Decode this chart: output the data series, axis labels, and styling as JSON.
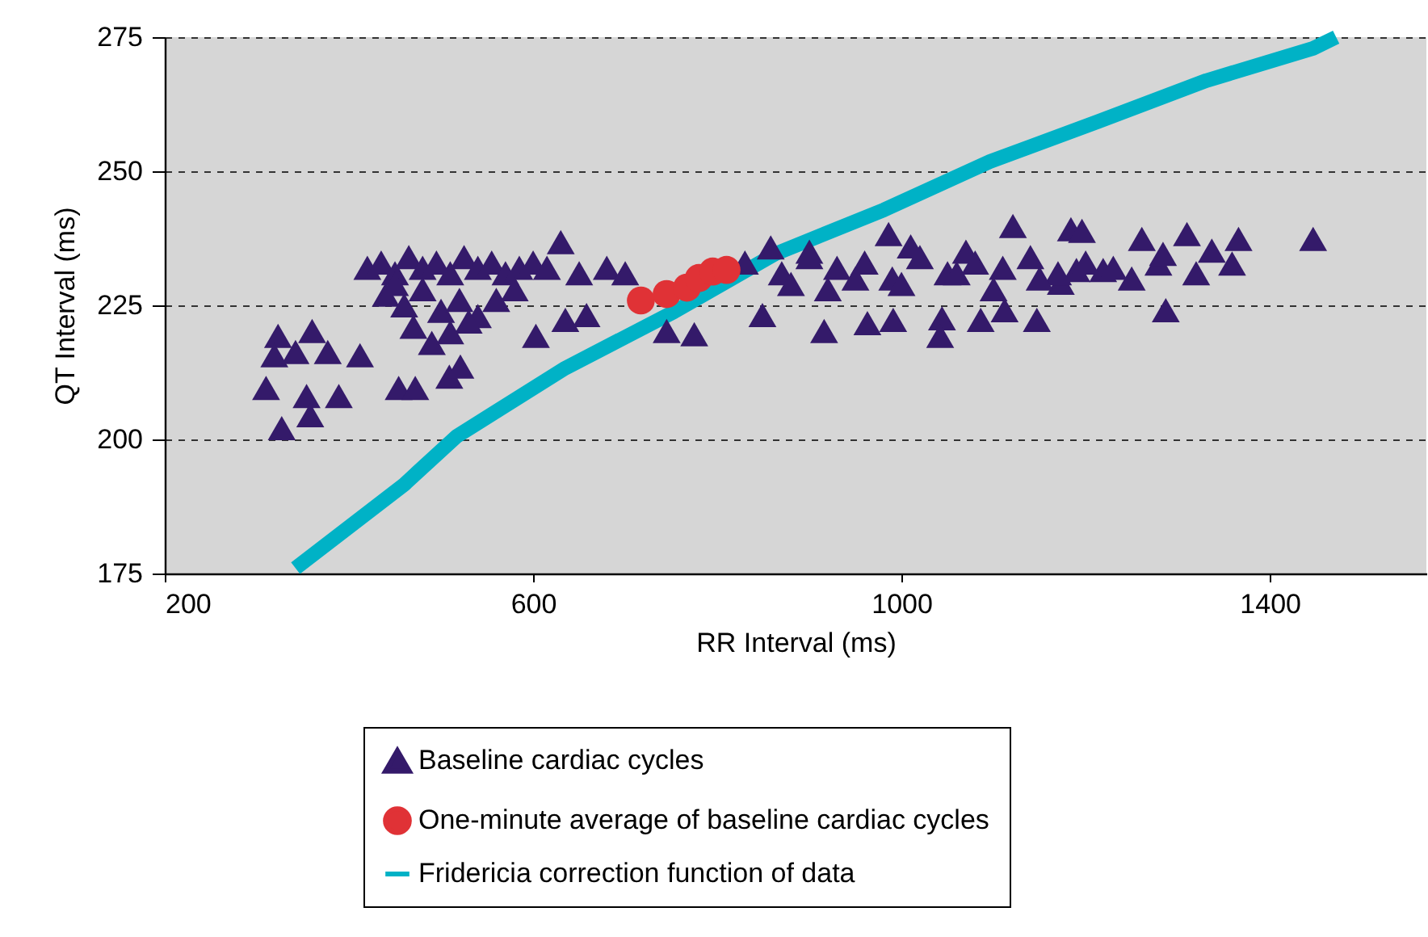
{
  "chart_data": {
    "type": "scatter",
    "xlabel": "RR Interval (ms)",
    "ylabel": "QT Interval (ms)",
    "xlim": [
      200,
      1570
    ],
    "xticks": [
      200,
      600,
      1000,
      1400
    ],
    "ylim": [
      175,
      275
    ],
    "yticks": [
      175,
      200,
      225,
      250,
      275
    ],
    "grid": "y",
    "legend": "bottom",
    "series": [
      {
        "name": "Baseline  cardiac cycles",
        "color": "#341a6a",
        "marker": "triangle",
        "x": [
          323,
          360,
          310,
          327,
          354,
          389,
          412,
          358,
          319,
          342,
          377,
          454,
          472,
          509,
          521,
          635,
          658,
          603,
          630,
          745,
          775,
          849,
          916,
          963,
          991,
          1044,
          1042,
          1086,
          1147,
          1112,
          1190,
          858,
          986,
          1121,
          1184,
          1447,
          1366,
          1359,
          1287,
          1310,
          1337,
          1279,
          1284,
          1261,
          1219,
          1173,
          1196,
          420,
          435,
          450,
          465,
          480,
          495,
          510,
          525,
          540,
          555,
          570,
          585,
          600,
          615,
          650,
          680,
          700,
          440,
          460,
          480,
          500,
          520,
          540,
          470,
          490,
          510,
          530,
          450,
          560,
          580,
          830,
          870,
          900,
          930,
          960,
          990,
          1020,
          1050,
          1080,
          1110,
          1140,
          1170,
          1200,
          1230,
          880,
          920,
          950,
          1000,
          1060,
          1100,
          1150,
          1250,
          1320,
          900,
          1010,
          1070
        ],
        "values": [
          219.3,
          220.2,
          209.6,
          202.1,
          208.1,
          208.1,
          215.7,
          204.5,
          215.7,
          216.3,
          216.3,
          209.6,
          209.6,
          211.7,
          213.6,
          222.3,
          223.2,
          219.3,
          236.8,
          220.2,
          219.6,
          223.2,
          220.2,
          221.7,
          222.3,
          222.6,
          219.3,
          222.3,
          222.3,
          224.1,
          231.6,
          235.8,
          238.3,
          239.8,
          239.2,
          237.4,
          237.4,
          232.8,
          224.1,
          238.3,
          235.2,
          232.8,
          234.6,
          237.4,
          231.6,
          229.2,
          238.9,
          232,
          233,
          231,
          234,
          232,
          233,
          231,
          234,
          232,
          233,
          231,
          232,
          233,
          232,
          231,
          232,
          231,
          227,
          225,
          228,
          224,
          226,
          223,
          221,
          218,
          220,
          222,
          229,
          226,
          228,
          233,
          231,
          234,
          232,
          233,
          230,
          234,
          231,
          233,
          232,
          234,
          231,
          233,
          232,
          229,
          228,
          230,
          229,
          231,
          228,
          230,
          230,
          231,
          235,
          236,
          235
        ]
      },
      {
        "name": "One-minute average of baseline cardiac cycles",
        "color": "#e03236",
        "marker": "circle",
        "x": [
          717,
          745,
          767,
          780,
          795,
          810
        ],
        "values": [
          225.9,
          227.1,
          228.3,
          230.1,
          231.3,
          231.6
        ]
      },
      {
        "name": "Fridericia correction function of data",
        "color": "#00b2c6",
        "type": "line",
        "marker": "none",
        "x": [
          342,
          460,
          517,
          635,
          753,
          863,
          981,
          1096,
          1214,
          1331,
          1447,
          1472
        ],
        "values": [
          176,
          191.6,
          200.6,
          213.3,
          223.8,
          234.6,
          242.8,
          251.8,
          259.3,
          266.9,
          272.9,
          275
        ]
      }
    ]
  }
}
